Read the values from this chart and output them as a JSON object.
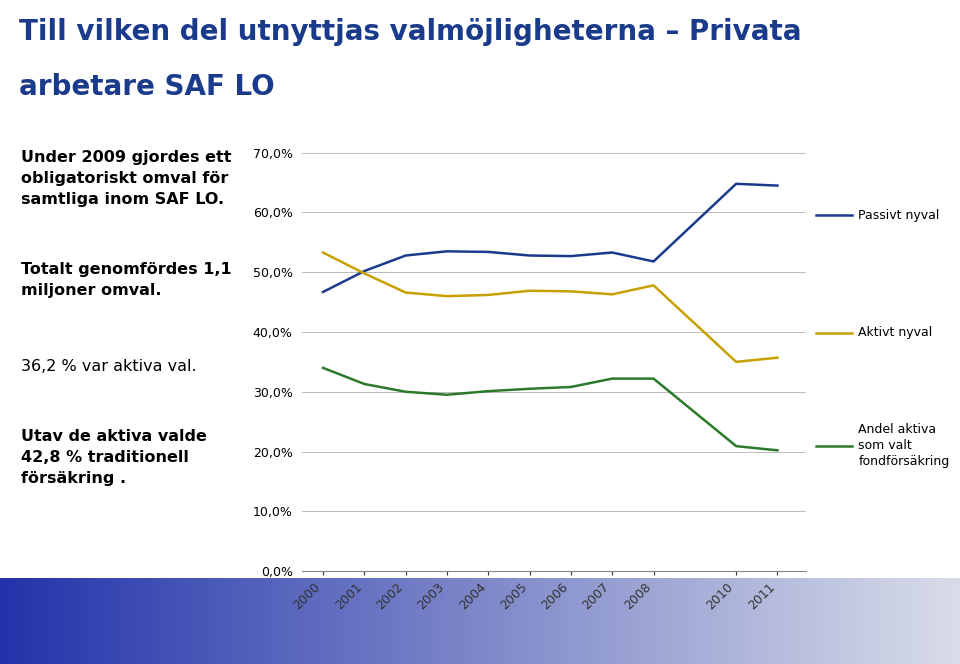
{
  "title_line1": "Till vilken del utnyttjas valmöjligheterna – Privata",
  "title_line2": "arbetare SAF LO",
  "left_texts": [
    {
      "text": "Under 2009 gjordes ett\nobligatoriskt omval för\nsamtliga inom SAF LO.",
      "bold": true
    },
    {
      "text": "Totalt genomfördes 1,1\nmiljoner omval.",
      "bold": true
    },
    {
      "text": "36,2 % var aktiva val.",
      "bold": false
    },
    {
      "text": "Utav de aktiva valde\n42,8 % traditionell\nförsäkring .",
      "bold": true
    }
  ],
  "years": [
    2000,
    2001,
    2002,
    2003,
    2004,
    2005,
    2006,
    2007,
    2008,
    2010,
    2011
  ],
  "passivt_nyval": [
    0.467,
    0.502,
    0.528,
    0.535,
    0.534,
    0.528,
    0.527,
    0.533,
    0.518,
    0.648,
    0.645
  ],
  "aktivt_nyval": [
    0.533,
    0.498,
    0.466,
    0.46,
    0.462,
    0.469,
    0.468,
    0.463,
    0.478,
    0.35,
    0.357
  ],
  "andel_aktiva": [
    0.34,
    0.313,
    0.3,
    0.295,
    0.301,
    0.305,
    0.308,
    0.322,
    0.322,
    0.209,
    0.202
  ],
  "passivt_color": "#1a3a8c",
  "aktivt_color": "#c8a000",
  "andel_color": "#2a7a2a",
  "ylim": [
    0.0,
    0.7
  ],
  "yticks": [
    0.0,
    0.1,
    0.2,
    0.3,
    0.4,
    0.5,
    0.6,
    0.7
  ],
  "ytick_labels": [
    "0,0%",
    "10,0%",
    "20,0%",
    "30,0%",
    "40,0%",
    "50,0%",
    "60,0%",
    "70,0%"
  ],
  "legend_passivt": "Passivt nyval",
  "legend_aktivt": "Aktivt nyval",
  "legend_andel": "Andel aktiva\nsom valt\nfondförsäkring",
  "title_color": "#1a3a8c",
  "background_color": "#FFFFFF",
  "footer_gradient_left": "#2233aa",
  "footer_gradient_right": "#d8daea"
}
